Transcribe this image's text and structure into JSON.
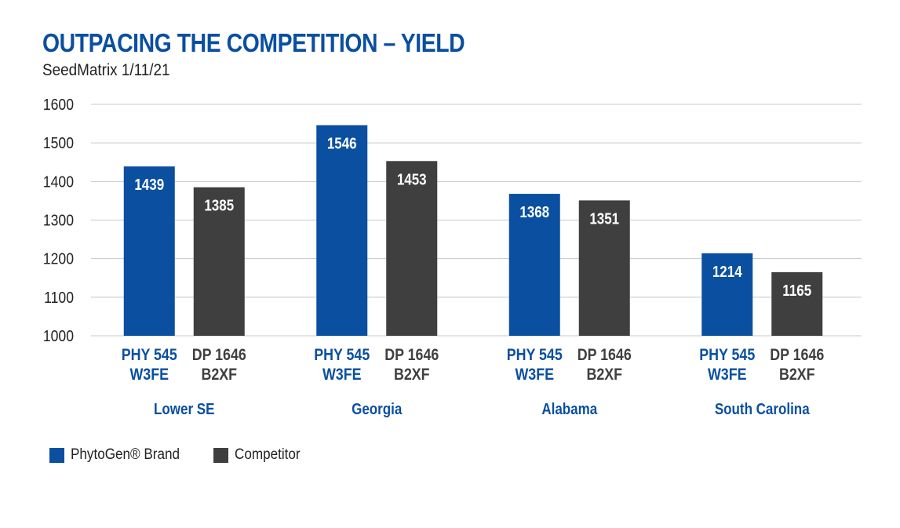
{
  "header": {
    "title": "OUTPACING THE COMPETITION – YIELD",
    "subtitle": "SeedMatrix 1/11/21"
  },
  "colors": {
    "brand": "#0a4fa0",
    "competitor": "#3f3f3f",
    "grid": "#c8c8c8",
    "axis_text": "#222222"
  },
  "chart_data": {
    "type": "bar",
    "title": "OUTPACING THE COMPETITION – YIELD",
    "subtitle": "SeedMatrix 1/11/21",
    "ylim": [
      1000,
      1600
    ],
    "yticks": [
      1000,
      1100,
      1200,
      1300,
      1400,
      1500,
      1600
    ],
    "grid": true,
    "legend_position": "bottom-left",
    "categories": [
      "Lower SE",
      "Georgia",
      "Alabama",
      "South Carolina"
    ],
    "series": [
      {
        "name": "PhytoGen® Brand",
        "variety": [
          "PHY 545",
          "W3FE"
        ],
        "color": "#0a4fa0",
        "values": [
          1439,
          1546,
          1368,
          1214
        ]
      },
      {
        "name": "Competitor",
        "variety": [
          "DP 1646",
          "B2XF"
        ],
        "color": "#3f3f3f",
        "values": [
          1385,
          1453,
          1351,
          1165
        ]
      }
    ]
  }
}
